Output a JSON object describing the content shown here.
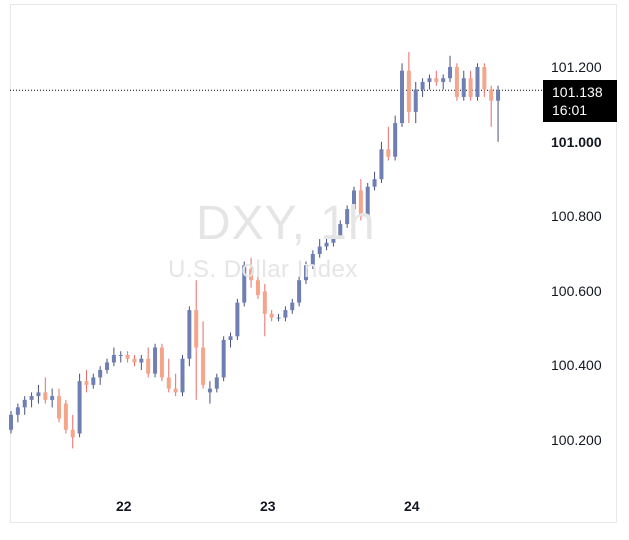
{
  "watermark": {
    "title": "DXY, 1h",
    "subtitle": "U.S. Dollar Index"
  },
  "price_label": {
    "value": "101.138",
    "time": "16:01"
  },
  "colors": {
    "up": "#6f7fb3",
    "down": "#f4a58a",
    "wick_up": "#46507a",
    "wick_down": "#ea6a6a",
    "price_line": "#000000"
  },
  "chart_data": {
    "type": "candlestick",
    "title": "DXY, 1h",
    "subtitle": "U.S. Dollar Index",
    "last_price": 101.138,
    "ylim": [
      100.07,
      101.27
    ],
    "y_ticks": [
      "100.200",
      "100.400",
      "100.600",
      "100.800",
      "101.000",
      "101.200"
    ],
    "x_ticks": [
      {
        "label": "22",
        "index": 17
      },
      {
        "label": "23",
        "index": 38
      },
      {
        "label": "24",
        "index": 59
      }
    ],
    "candles": [
      [
        100.23,
        100.28,
        100.22,
        100.27
      ],
      [
        100.27,
        100.3,
        100.25,
        100.29
      ],
      [
        100.29,
        100.32,
        100.27,
        100.31
      ],
      [
        100.31,
        100.33,
        100.29,
        100.32
      ],
      [
        100.32,
        100.35,
        100.3,
        100.33
      ],
      [
        100.33,
        100.37,
        100.3,
        100.31
      ],
      [
        100.31,
        100.34,
        100.29,
        100.32
      ],
      [
        100.32,
        100.34,
        100.25,
        100.26
      ],
      [
        100.3,
        100.31,
        100.22,
        100.23
      ],
      [
        100.23,
        100.27,
        100.18,
        100.21
      ],
      [
        100.22,
        100.38,
        100.21,
        100.36
      ],
      [
        100.36,
        100.39,
        100.33,
        100.35
      ],
      [
        100.35,
        100.38,
        100.34,
        100.37
      ],
      [
        100.37,
        100.4,
        100.35,
        100.39
      ],
      [
        100.39,
        100.42,
        100.38,
        100.41
      ],
      [
        100.41,
        100.45,
        100.4,
        100.43
      ],
      [
        100.43,
        100.44,
        100.41,
        100.43
      ],
      [
        100.43,
        100.44,
        100.41,
        100.42
      ],
      [
        100.42,
        100.43,
        100.4,
        100.41
      ],
      [
        100.41,
        100.43,
        100.39,
        100.42
      ],
      [
        100.42,
        100.45,
        100.37,
        100.38
      ],
      [
        100.38,
        100.46,
        100.37,
        100.45
      ],
      [
        100.45,
        100.46,
        100.36,
        100.37
      ],
      [
        100.37,
        100.42,
        100.33,
        100.34
      ],
      [
        100.34,
        100.38,
        100.32,
        100.33
      ],
      [
        100.33,
        100.43,
        100.32,
        100.42
      ],
      [
        100.42,
        100.56,
        100.4,
        100.55
      ],
      [
        100.55,
        100.63,
        100.31,
        100.45
      ],
      [
        100.45,
        100.52,
        100.34,
        100.35
      ],
      [
        100.33,
        100.36,
        100.3,
        100.34
      ],
      [
        100.34,
        100.38,
        100.33,
        100.37
      ],
      [
        100.37,
        100.48,
        100.36,
        100.47
      ],
      [
        100.47,
        100.49,
        100.45,
        100.48
      ],
      [
        100.48,
        100.58,
        100.47,
        100.57
      ],
      [
        100.57,
        100.68,
        100.56,
        100.67
      ],
      [
        100.66,
        100.69,
        100.61,
        100.63
      ],
      [
        100.63,
        100.65,
        100.58,
        100.59
      ],
      [
        100.6,
        100.62,
        100.48,
        100.54
      ],
      [
        100.54,
        100.55,
        100.52,
        100.53
      ],
      [
        100.53,
        100.54,
        100.52,
        100.53
      ],
      [
        100.53,
        100.56,
        100.52,
        100.55
      ],
      [
        100.55,
        100.58,
        100.54,
        100.57
      ],
      [
        100.57,
        100.64,
        100.56,
        100.63
      ],
      [
        100.63,
        100.68,
        100.62,
        100.67
      ],
      [
        100.67,
        100.71,
        100.66,
        100.7
      ],
      [
        100.7,
        100.74,
        100.69,
        100.72
      ],
      [
        100.72,
        100.75,
        100.71,
        100.73
      ],
      [
        100.73,
        100.76,
        100.72,
        100.75
      ],
      [
        100.75,
        100.79,
        100.74,
        100.78
      ],
      [
        100.78,
        100.83,
        100.77,
        100.82
      ],
      [
        100.82,
        100.88,
        100.81,
        100.87
      ],
      [
        100.87,
        100.9,
        100.79,
        100.8
      ],
      [
        100.8,
        100.89,
        100.79,
        100.88
      ],
      [
        100.88,
        100.92,
        100.87,
        100.9
      ],
      [
        100.9,
        101.0,
        100.89,
        100.98
      ],
      [
        100.98,
        101.04,
        100.95,
        100.96
      ],
      [
        100.96,
        101.07,
        100.95,
        101.05
      ],
      [
        101.05,
        101.21,
        101.04,
        101.19
      ],
      [
        101.19,
        101.24,
        101.05,
        101.08
      ],
      [
        101.08,
        101.16,
        101.05,
        101.14
      ],
      [
        101.14,
        101.17,
        101.12,
        101.16
      ],
      [
        101.16,
        101.18,
        101.14,
        101.17
      ],
      [
        101.17,
        101.19,
        101.15,
        101.16
      ],
      [
        101.16,
        101.18,
        101.14,
        101.17
      ],
      [
        101.17,
        101.23,
        101.16,
        101.2
      ],
      [
        101.2,
        101.21,
        101.11,
        101.12
      ],
      [
        101.12,
        101.19,
        101.11,
        101.17
      ],
      [
        101.17,
        101.19,
        101.11,
        101.12
      ],
      [
        101.12,
        101.21,
        101.11,
        101.2
      ],
      [
        101.2,
        101.21,
        101.12,
        101.14
      ],
      [
        101.14,
        101.15,
        101.04,
        101.11
      ],
      [
        101.11,
        101.15,
        101.0,
        101.138
      ]
    ]
  }
}
